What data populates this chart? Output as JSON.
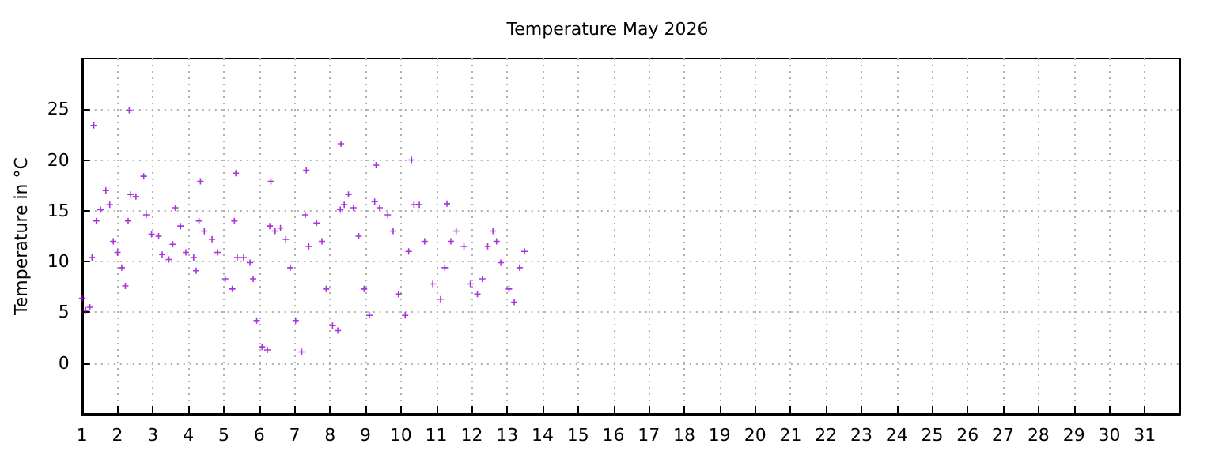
{
  "chart_data": {
    "type": "scatter",
    "title": "Temperature May 2026",
    "ylabel": "Temperature in °C",
    "xlim": [
      1,
      32
    ],
    "xticks": [
      1,
      2,
      3,
      4,
      5,
      6,
      7,
      8,
      9,
      10,
      11,
      12,
      13,
      14,
      15,
      16,
      17,
      18,
      19,
      20,
      21,
      22,
      23,
      24,
      25,
      26,
      27,
      28,
      29,
      30,
      31
    ],
    "ylim": [
      -5,
      30
    ],
    "yticks": [
      0,
      5,
      10,
      15,
      20,
      25
    ],
    "grid": true,
    "marker": "cross",
    "series": [
      {
        "color": "#9400d3",
        "x": [
          1.0,
          1.1,
          1.22,
          1.28,
          1.33,
          1.4,
          1.52,
          1.67,
          1.78,
          1.88,
          2.0,
          2.12,
          2.22,
          2.3,
          2.33,
          2.37,
          2.52,
          2.74,
          2.81,
          2.96,
          3.16,
          3.26,
          3.45,
          3.56,
          3.63,
          3.78,
          3.93,
          4.15,
          4.22,
          4.3,
          4.34,
          4.45,
          4.67,
          4.82,
          5.04,
          5.24,
          5.3,
          5.34,
          5.38,
          5.56,
          5.74,
          5.83,
          5.93,
          6.08,
          6.23,
          6.3,
          6.33,
          6.45,
          6.6,
          6.75,
          6.88,
          7.03,
          7.2,
          7.3,
          7.33,
          7.4,
          7.62,
          7.77,
          7.89,
          8.07,
          8.22,
          8.29,
          8.31,
          8.4,
          8.52,
          8.66,
          8.81,
          8.96,
          9.11,
          9.26,
          9.3,
          9.4,
          9.63,
          9.78,
          9.93,
          10.12,
          10.22,
          10.3,
          10.37,
          10.52,
          10.67,
          10.9,
          11.12,
          11.24,
          11.3,
          11.41,
          11.56,
          11.78,
          11.96,
          12.16,
          12.3,
          12.45,
          12.6,
          12.7,
          12.82,
          13.05,
          13.2,
          13.35,
          13.49
        ],
        "values": [
          6.4,
          5.2,
          5.5,
          10.4,
          23.4,
          14.0,
          15.1,
          17.0,
          15.6,
          12.0,
          10.9,
          9.4,
          7.6,
          14.0,
          24.9,
          16.6,
          16.4,
          18.4,
          14.6,
          12.7,
          12.5,
          10.7,
          10.2,
          11.7,
          15.3,
          13.5,
          10.9,
          10.4,
          9.1,
          14.0,
          17.9,
          13.0,
          12.2,
          10.9,
          8.3,
          7.3,
          14.0,
          18.7,
          10.4,
          10.4,
          9.9,
          8.3,
          4.2,
          1.6,
          1.3,
          13.5,
          17.9,
          13.0,
          13.3,
          12.2,
          9.4,
          4.2,
          1.1,
          14.6,
          19.0,
          11.5,
          13.8,
          12.0,
          7.3,
          3.7,
          3.2,
          15.1,
          21.6,
          15.6,
          16.6,
          15.3,
          12.5,
          7.3,
          4.7,
          15.9,
          19.5,
          15.3,
          14.6,
          13.0,
          6.8,
          4.7,
          11.0,
          20.0,
          15.6,
          15.6,
          12.0,
          7.8,
          6.3,
          9.4,
          15.7,
          12.0,
          13.0,
          11.5,
          7.8,
          6.8,
          8.3,
          11.5,
          13.0,
          12.0,
          9.9,
          7.3,
          6.0,
          9.4,
          11.0
        ]
      }
    ]
  }
}
